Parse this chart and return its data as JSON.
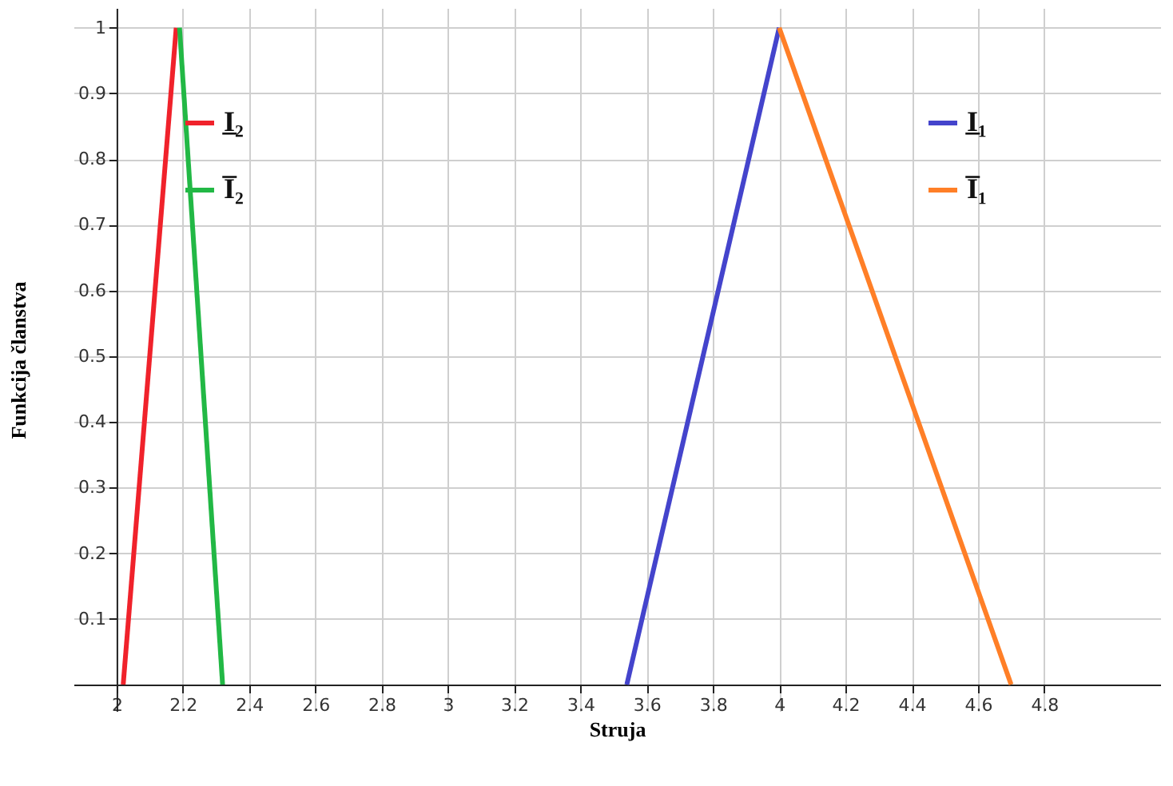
{
  "chart_data": {
    "type": "line",
    "xlabel": "Struja",
    "ylabel": "Funkcija članstva",
    "series": [
      {
        "name": "I̲₂",
        "color": "#f0222b",
        "x": [
          2.02,
          2.18
        ],
        "values": [
          0,
          1
        ]
      },
      {
        "name": "I̅₂",
        "color": "#22b845",
        "x": [
          2.19,
          2.32
        ],
        "values": [
          1,
          0
        ]
      },
      {
        "name": "I̲₁",
        "color": "#4444cc",
        "x": [
          3.54,
          4.0
        ],
        "values": [
          0,
          1
        ]
      },
      {
        "name": "I̅₁",
        "color": "#ff7f27",
        "x": [
          4.0,
          4.7
        ],
        "values": [
          1,
          0
        ]
      }
    ],
    "xlim": [
      1.87,
      5.15
    ],
    "ylim": [
      -0.04,
      1.03
    ],
    "xticks": [
      2,
      2.2,
      2.4,
      2.6,
      2.8,
      3,
      3.2,
      3.4,
      3.6,
      3.8,
      4,
      4.2,
      4.4,
      4.6,
      4.8
    ],
    "yticks": [
      0.1,
      0.2,
      0.3,
      0.4,
      0.5,
      0.6,
      0.7,
      0.8,
      0.9,
      1
    ],
    "grid": true,
    "legend": "top",
    "marker": "none",
    "line_style": "solid"
  }
}
